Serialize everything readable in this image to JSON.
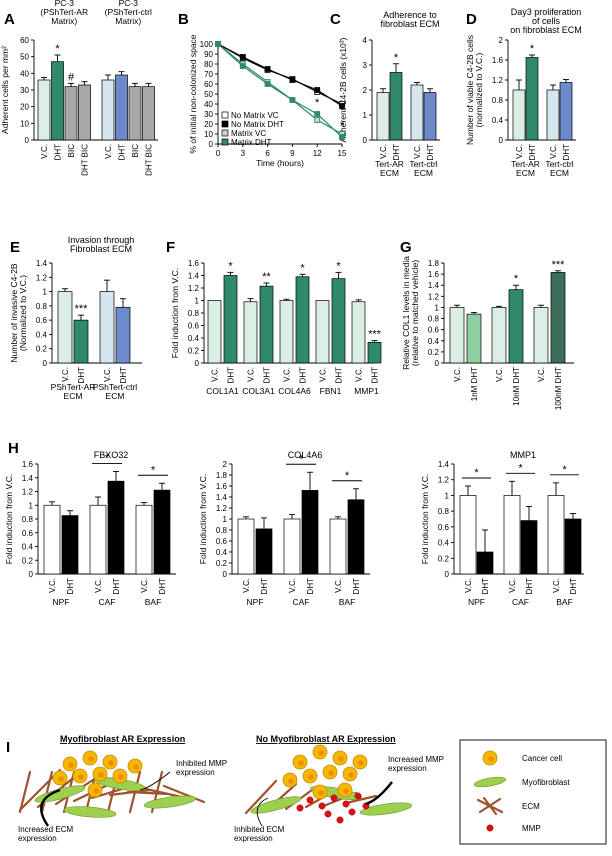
{
  "chart_data": [
    {
      "id": "A",
      "type": "bar",
      "panel_letter": "A",
      "title": "",
      "xlabel": "",
      "ylabel": "Adherent cells per mm²",
      "ylim": [
        0,
        60
      ],
      "yticks": [
        0,
        10,
        20,
        30,
        40,
        50,
        60
      ],
      "group_labels": [
        "PC-3\n(PShTert-AR\nMatrix)",
        "PC-3\n(PShTert-ctrl\nMatrix)"
      ],
      "categories": [
        "V.C.",
        "DHT",
        "BIC",
        "DHT BIC",
        "V.C.",
        "DHT",
        "BIC",
        "DHT BIC"
      ],
      "values": [
        36,
        47,
        32,
        33,
        36,
        39,
        32,
        32
      ],
      "errors": [
        1.5,
        4,
        2,
        2,
        3,
        2,
        2,
        2
      ],
      "colors": [
        "#dbeee4",
        "#2f8a6b",
        "#a8a8a8",
        "#a8a8a8",
        "#d6e6ef",
        "#6d8bcb",
        "#a8a8a8",
        "#a8a8a8"
      ],
      "annotations": [
        "",
        "*",
        "#",
        "",
        "",
        "",
        "",
        ""
      ]
    },
    {
      "id": "B",
      "type": "line",
      "panel_letter": "B",
      "title": "",
      "xlabel": "Time (hours)",
      "ylabel": "% of initial non-colonized space",
      "x": [
        0,
        3,
        6,
        9,
        12,
        15
      ],
      "xlim": [
        0,
        15
      ],
      "ylim": [
        0,
        100
      ],
      "xticks": [
        0,
        3,
        6,
        9,
        12,
        15
      ],
      "yticks": [
        0,
        10,
        20,
        30,
        40,
        50,
        60,
        70,
        80,
        90,
        100
      ],
      "series": [
        {
          "name": "No Matrix VC",
          "values": [
            100,
            86,
            74,
            65,
            52,
            40
          ],
          "color": "#ffffff",
          "line": "#000000"
        },
        {
          "name": "No Matrix DHT",
          "values": [
            100,
            87,
            75,
            64,
            54,
            38
          ],
          "color": "#000000",
          "line": "#000000"
        },
        {
          "name": "Matrix VC",
          "values": [
            100,
            80,
            62,
            44,
            24,
            10
          ],
          "color": "#cfcfcf",
          "line": "#2f8a6b"
        },
        {
          "name": "Matrix DHT",
          "values": [
            100,
            78,
            60,
            44,
            30,
            7
          ],
          "color": "#2f8a6b",
          "line": "#2f8a6b"
        }
      ],
      "annotations": [
        {
          "x": 12,
          "text": "*"
        },
        {
          "x": 15,
          "text": "*"
        }
      ]
    },
    {
      "id": "C",
      "type": "bar",
      "panel_letter": "C",
      "title": "Adherence to\nfibroblast ECM",
      "xlabel": "",
      "ylabel": "Adherent C4-2B cells (x10³)",
      "ylim": [
        0,
        4
      ],
      "yticks": [
        0,
        1,
        2,
        3,
        4
      ],
      "group_labels": [
        "Tert-AR\nECM",
        "Tert-ctrl\nECM"
      ],
      "categories": [
        "V.C.",
        "DHT",
        "V.C.",
        "DHT"
      ],
      "values": [
        1.9,
        2.7,
        2.2,
        1.9
      ],
      "errors": [
        0.15,
        0.35,
        0.1,
        0.15
      ],
      "colors": [
        "#dbeee4",
        "#2f8a6b",
        "#d6e6ef",
        "#6d8bcb"
      ],
      "annotations": [
        "",
        "*",
        "",
        ""
      ]
    },
    {
      "id": "D",
      "type": "bar",
      "panel_letter": "D",
      "title": "Day3 proliferation\nof cells\non fibroblast ECM",
      "xlabel": "",
      "ylabel": "Number of viable C4-2B cells\n(normalized to V.C.)",
      "ylim": [
        0,
        2.0
      ],
      "yticks": [
        0,
        0.4,
        0.8,
        1.2,
        1.6,
        2.0
      ],
      "group_labels": [
        "Tert-AR\nECM",
        "Tert-ctrl\nECM"
      ],
      "categories": [
        "V.C.",
        "DHT",
        "V.C.",
        "DHT"
      ],
      "values": [
        1.0,
        1.65,
        1.0,
        1.15
      ],
      "errors": [
        0.2,
        0.05,
        0.1,
        0.06
      ],
      "colors": [
        "#dbeee4",
        "#2f8a6b",
        "#d6e6ef",
        "#6d8bcb"
      ],
      "annotations": [
        "",
        "*",
        "",
        ""
      ]
    },
    {
      "id": "E",
      "type": "bar",
      "panel_letter": "E",
      "title": "Invasion through\nFibroblast ECM",
      "xlabel": "",
      "ylabel": "Number of invasive C4-2B\n(Normalized to V.C.)",
      "ylim": [
        0,
        1.4
      ],
      "yticks": [
        0,
        0.2,
        0.4,
        0.6,
        0.8,
        1.0,
        1.2,
        1.4
      ],
      "group_labels": [
        "PShTert-AR\nECM",
        "PShTert-ctrl\nECM"
      ],
      "categories": [
        "V.C.",
        "DHT",
        "V.C.",
        "DHT"
      ],
      "values": [
        1.0,
        0.6,
        1.0,
        0.78
      ],
      "errors": [
        0.04,
        0.07,
        0.16,
        0.12
      ],
      "colors": [
        "#dbeee4",
        "#2f8a6b",
        "#d6e6ef",
        "#6d8bcb"
      ],
      "annotations": [
        "",
        "***",
        "",
        ""
      ]
    },
    {
      "id": "F",
      "type": "bar",
      "panel_letter": "F",
      "title": "",
      "xlabel": "",
      "ylabel": "Fold induction from V.C.",
      "ylim": [
        0,
        1.6
      ],
      "yticks": [
        0,
        0.2,
        0.4,
        0.6,
        0.8,
        1.0,
        1.2,
        1.4,
        1.6
      ],
      "group_labels": [
        "COL1A1",
        "COL3A1",
        "COL4A6",
        "FBN1",
        "MMP1"
      ],
      "categories": [
        "V.C.",
        "DHT",
        "V.C.",
        "DHT",
        "V.C.",
        "DHT",
        "V.C.",
        "DHT",
        "V.C.",
        "DHT"
      ],
      "values": [
        1.0,
        1.4,
        0.98,
        1.23,
        1.0,
        1.38,
        1.0,
        1.35,
        0.98,
        0.33
      ],
      "errors": [
        0,
        0.05,
        0.05,
        0.05,
        0.02,
        0.04,
        0,
        0.1,
        0.03,
        0.03
      ],
      "colors": [
        "#dbeee4",
        "#2f8a6b",
        "#dbeee4",
        "#2f8a6b",
        "#dbeee4",
        "#2f8a6b",
        "#dbeee4",
        "#2f8a6b",
        "#dbeee4",
        "#2f8a6b"
      ],
      "annotations": [
        "",
        "*",
        "",
        "**",
        "",
        "*",
        "",
        "*",
        "",
        "***"
      ]
    },
    {
      "id": "G",
      "type": "bar",
      "panel_letter": "G",
      "title": "",
      "xlabel": "",
      "ylabel": "Relative COL1 levels in media\n(relative to matched vehicle)",
      "ylim": [
        0,
        1.8
      ],
      "yticks": [
        0,
        0.2,
        0.4,
        0.6,
        0.8,
        1.0,
        1.2,
        1.4,
        1.6,
        1.8
      ],
      "categories": [
        "V.C.",
        "1nM DHT",
        "V.C.",
        "10nM DHT",
        "V.C.",
        "100nM DHT"
      ],
      "values": [
        1.0,
        0.88,
        1.0,
        1.32,
        1.0,
        1.63
      ],
      "errors": [
        0.04,
        0.03,
        0.02,
        0.08,
        0.04,
        0.03
      ],
      "colors": [
        "#dbeee4",
        "#8fcf9f",
        "#dbeee4",
        "#2f8a6b",
        "#dbeee4",
        "#3c6e5a"
      ],
      "annotations": [
        "",
        "",
        "",
        "*",
        "",
        "***"
      ]
    },
    {
      "id": "H1",
      "type": "bar",
      "panel_letter": "H",
      "title": "FBXO32",
      "xlabel": "",
      "ylabel": "Fold induction from V.C.",
      "ylim": [
        0,
        1.6
      ],
      "yticks": [
        0,
        0.2,
        0.4,
        0.6,
        0.8,
        1.0,
        1.2,
        1.4,
        1.6
      ],
      "group_labels": [
        "NPF",
        "CAF",
        "BAF"
      ],
      "categories": [
        "V.C.",
        "DHT",
        "V.C.",
        "DHT",
        "V.C.",
        "DHT"
      ],
      "values": [
        1.0,
        0.85,
        1.0,
        1.35,
        1.0,
        1.22
      ],
      "errors": [
        0.05,
        0.07,
        0.12,
        0.14,
        0.04,
        0.1
      ],
      "colors": [
        "#ffffff",
        "#000000",
        "#ffffff",
        "#000000",
        "#ffffff",
        "#000000"
      ],
      "annotations": [
        "",
        "",
        "*",
        "",
        "*",
        ""
      ]
    },
    {
      "id": "H2",
      "type": "bar",
      "title": "COL4A6",
      "xlabel": "",
      "ylabel": "Fold induction from V.C.",
      "ylim": [
        0,
        2.0
      ],
      "yticks": [
        0,
        0.2,
        0.4,
        0.6,
        0.8,
        1.0,
        1.2,
        1.4,
        1.6,
        1.8,
        2.0
      ],
      "group_labels": [
        "NPF",
        "CAF",
        "BAF"
      ],
      "categories": [
        "V.C.",
        "DHT",
        "V.C.",
        "DHT",
        "V.C.",
        "DHT"
      ],
      "values": [
        1.0,
        0.82,
        1.0,
        1.52,
        1.0,
        1.35
      ],
      "errors": [
        0.04,
        0.2,
        0.08,
        0.33,
        0.04,
        0.2
      ],
      "colors": [
        "#ffffff",
        "#000000",
        "#ffffff",
        "#000000",
        "#ffffff",
        "#000000"
      ],
      "annotations": [
        "",
        "",
        "*",
        "",
        "*",
        ""
      ]
    },
    {
      "id": "H3",
      "type": "bar",
      "title": "MMP1",
      "xlabel": "",
      "ylabel": "Fold induction from V.C.",
      "ylim": [
        0,
        1.4
      ],
      "yticks": [
        0,
        0.2,
        0.4,
        0.6,
        0.8,
        1.0,
        1.2,
        1.4
      ],
      "group_labels": [
        "NPF",
        "CAF",
        "BAF"
      ],
      "categories": [
        "V.C.",
        "DHT",
        "V.C.",
        "DHT",
        "V.C.",
        "DHT"
      ],
      "values": [
        1.0,
        0.28,
        1.0,
        0.68,
        1.0,
        0.7
      ],
      "errors": [
        0.12,
        0.28,
        0.18,
        0.18,
        0.16,
        0.07
      ],
      "colors": [
        "#ffffff",
        "#000000",
        "#ffffff",
        "#000000",
        "#ffffff",
        "#000000"
      ],
      "annotations": [
        "*",
        "",
        "*",
        "",
        "*",
        ""
      ]
    }
  ],
  "panel_I": {
    "letter": "I",
    "left_title": "Myofibroblast AR Expression",
    "right_title": "No Myofibroblast AR Expression",
    "left_labels": [
      "Inhibited MMP\nexpression",
      "Increased ECM\nexpression"
    ],
    "right_labels": [
      "Increased MMP\nexpression",
      "Inhibited ECM\nexpression"
    ],
    "legend": [
      {
        "label": "Cancer cell",
        "icon": "cancer-cell-icon"
      },
      {
        "label": "Myofibroblast",
        "icon": "myofibroblast-icon"
      },
      {
        "label": "ECM",
        "icon": "ecm-icon"
      },
      {
        "label": "MMP",
        "icon": "mmp-icon"
      }
    ],
    "colors": {
      "cancer": "#f5b800",
      "fibro": "#9fcf4f",
      "ecm": "#a0522d",
      "mmp": "#e01010"
    }
  }
}
